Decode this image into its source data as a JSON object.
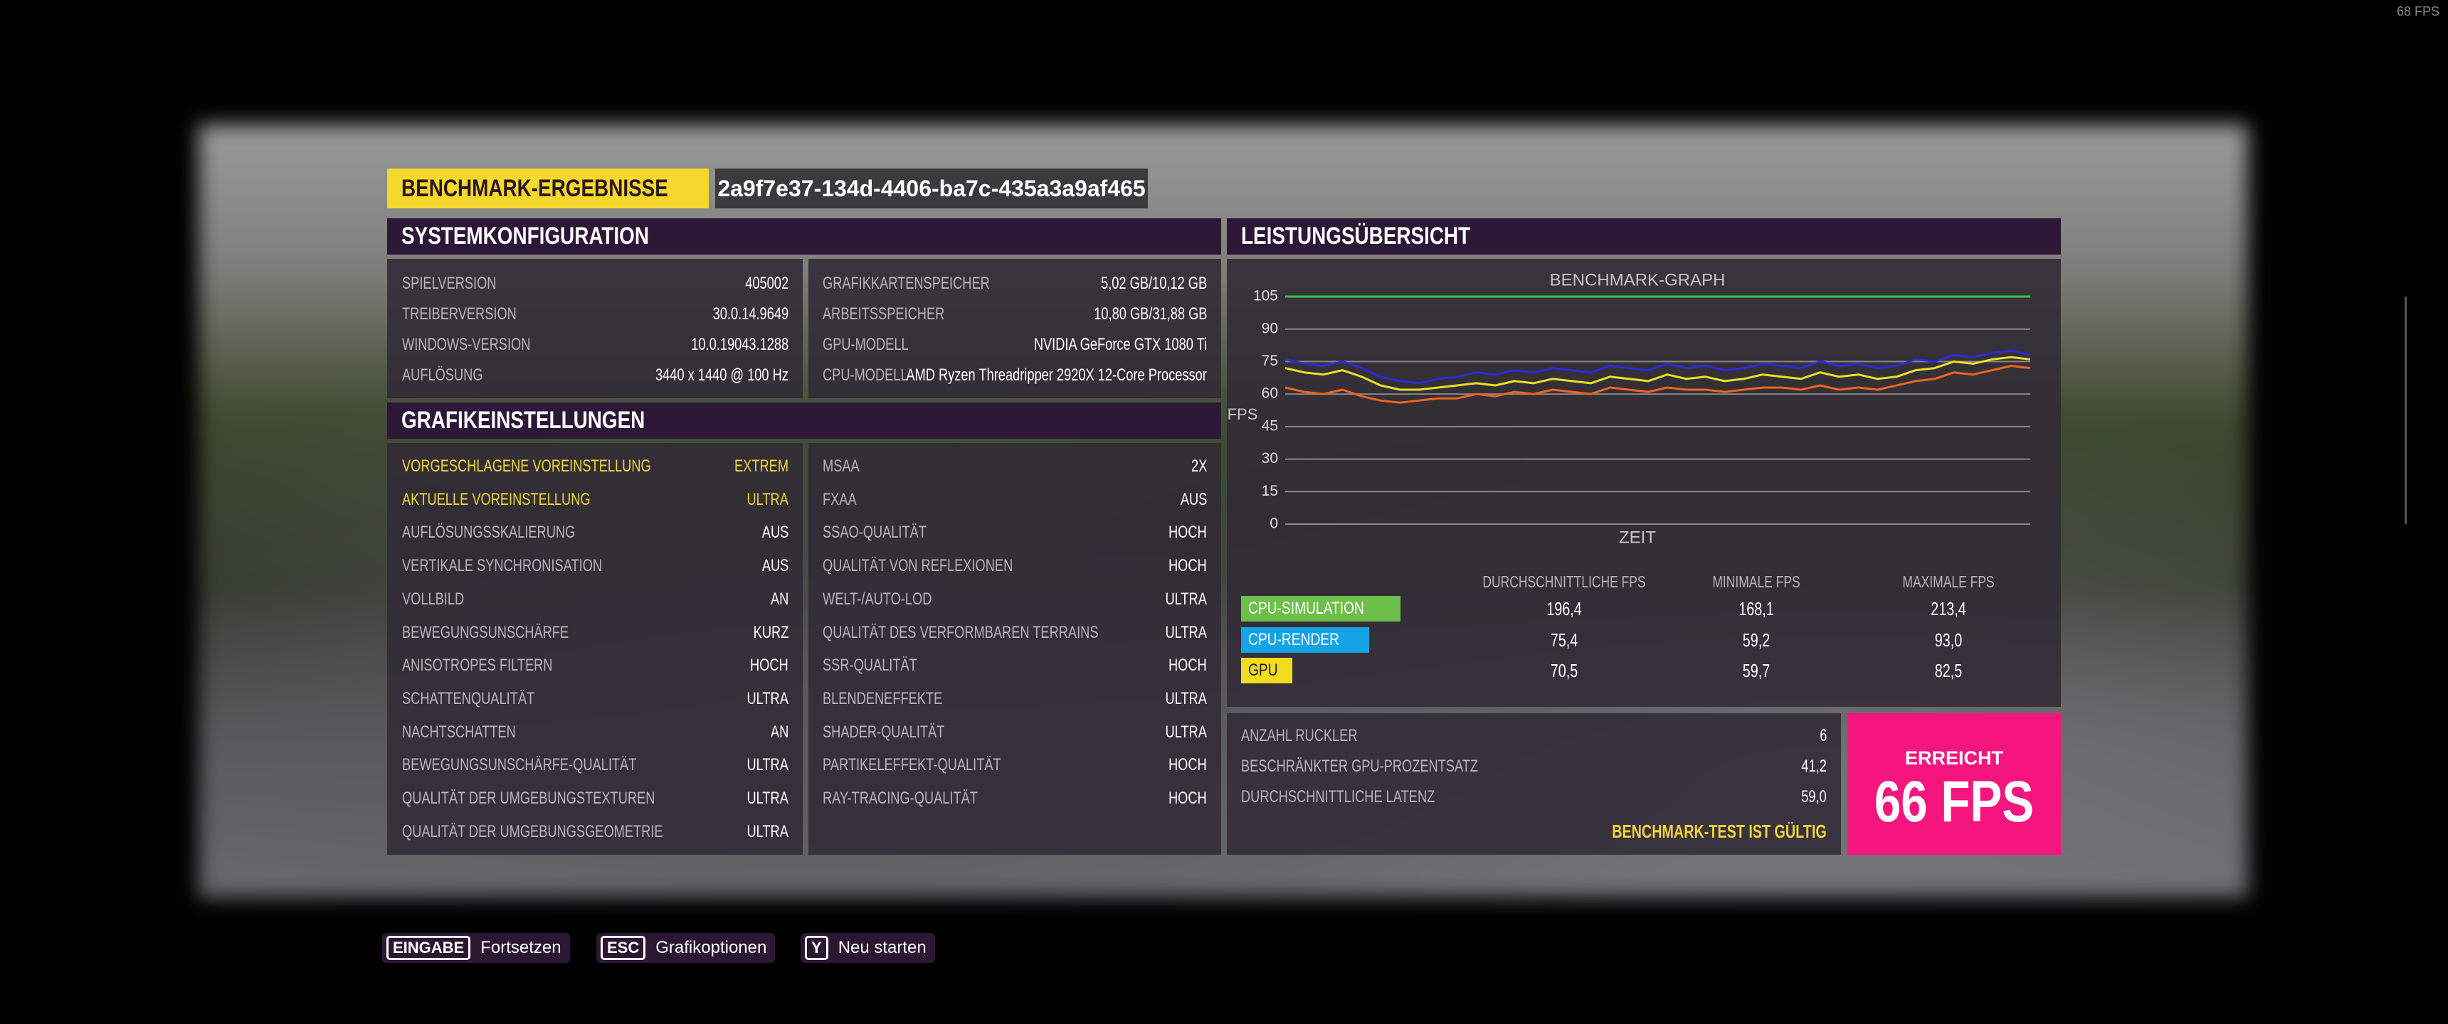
{
  "fps_counter": "68 FPS",
  "header": {
    "title": "BENCHMARK-ERGEBNISSE",
    "id": "2a9f7e37-134d-4406-ba7c-435a3a9af465"
  },
  "system": {
    "title": "SYSTEMKONFIGURATION",
    "left": [
      [
        "SPIELVERSION",
        "405002"
      ],
      [
        "TREIBERVERSION",
        "30.0.14.9649"
      ],
      [
        "WINDOWS-VERSION",
        "10.0.19043.1288"
      ],
      [
        "AUFLÖSUNG",
        "3440 x 1440 @ 100 Hz"
      ]
    ],
    "right": [
      [
        "GRAFIKKARTENSPEICHER",
        "5,02 GB/10,12 GB"
      ],
      [
        "ARBEITSSPEICHER",
        "10,80 GB/31,88 GB"
      ],
      [
        "GPU-MODELL",
        "NVIDIA GeForce GTX 1080 Ti"
      ],
      [
        "CPU-MODELL",
        "AMD Ryzen Threadripper 2920X 12-Core Processor"
      ]
    ]
  },
  "graphics": {
    "title": "GRAFIKEINSTELLUNGEN",
    "left": [
      [
        "VORGESCHLAGENE VOREINSTELLUNG",
        "EXTREM"
      ],
      [
        "AKTUELLE VOREINSTELLUNG",
        "ULTRA"
      ],
      [
        "AUFLÖSUNGSSKALIERUNG",
        "AUS"
      ],
      [
        "VERTIKALE SYNCHRONISATION",
        "AUS"
      ],
      [
        "VOLLBILD",
        "AN"
      ],
      [
        "BEWEGUNGSUNSCHÄRFE",
        "KURZ"
      ],
      [
        "ANISOTROPES FILTERN",
        "HOCH"
      ],
      [
        "SCHATTENQUALITÄT",
        "ULTRA"
      ],
      [
        "NACHTSCHATTEN",
        "AN"
      ],
      [
        "BEWEGUNGSUNSCHÄRFE-QUALITÄT",
        "ULTRA"
      ],
      [
        "QUALITÄT DER UMGEBUNGSTEXTUREN",
        "ULTRA"
      ],
      [
        "QUALITÄT DER UMGEBUNGSGEOMETRIE",
        "ULTRA"
      ]
    ],
    "right": [
      [
        "MSAA",
        "2X"
      ],
      [
        "FXAA",
        "AUS"
      ],
      [
        "SSAO-QUALITÄT",
        "HOCH"
      ],
      [
        "QUALITÄT VON REFLEXIONEN",
        "HOCH"
      ],
      [
        "WELT-/AUTO-LOD",
        "ULTRA"
      ],
      [
        "QUALITÄT DES VERFORMBAREN TERRAINS",
        "ULTRA"
      ],
      [
        "SSR-QUALITÄT",
        "HOCH"
      ],
      [
        "BLENDENEFFEKTE",
        "ULTRA"
      ],
      [
        "SHADER-QUALITÄT",
        "ULTRA"
      ],
      [
        "PARTIKELEFFEKT-QUALITÄT",
        "HOCH"
      ],
      [
        "RAY-TRACING-QUALITÄT",
        "HOCH"
      ]
    ]
  },
  "performance": {
    "title": "LEISTUNGSÜBERSICHT"
  },
  "chart_data": {
    "type": "line",
    "title": "BENCHMARK-GRAPH",
    "y_label": "FPS",
    "x_label": "ZEIT",
    "ylim": [
      0,
      105
    ],
    "yticks": [
      0,
      15,
      30,
      45,
      60,
      75,
      90,
      105
    ],
    "grid": true,
    "series": [
      {
        "color": "#2a2ad8",
        "values": [
          76,
          74,
          73,
          75,
          72,
          68,
          66,
          65,
          67,
          68,
          70,
          69,
          71,
          70,
          72,
          71,
          70,
          73,
          72,
          71,
          74,
          72,
          73,
          71,
          72,
          74,
          73,
          72,
          75,
          73,
          74,
          72,
          73,
          76,
          75,
          78,
          77,
          79,
          80,
          78
        ]
      },
      {
        "color": "#f0641e",
        "values": [
          63,
          61,
          60,
          62,
          59,
          57,
          56,
          57,
          58,
          58,
          60,
          59,
          61,
          60,
          62,
          61,
          60,
          63,
          62,
          61,
          63,
          62,
          62,
          61,
          62,
          63,
          63,
          62,
          64,
          62,
          63,
          62,
          64,
          66,
          67,
          70,
          69,
          71,
          73,
          72
        ]
      },
      {
        "color": "#e8e020",
        "values": [
          72,
          70,
          69,
          71,
          68,
          64,
          62,
          62,
          63,
          64,
          65,
          64,
          66,
          65,
          67,
          66,
          65,
          68,
          67,
          66,
          69,
          67,
          68,
          66,
          67,
          69,
          68,
          67,
          70,
          68,
          69,
          67,
          68,
          71,
          72,
          75,
          74,
          76,
          77,
          76
        ]
      },
      {
        "color": "#2ecc3a",
        "values": [
          105,
          105,
          105,
          105,
          105,
          105,
          105,
          105,
          105,
          105,
          105,
          105,
          105,
          105,
          105,
          105,
          105,
          105,
          105,
          105,
          105,
          105,
          105,
          105,
          105,
          105,
          105,
          105,
          105,
          105,
          105,
          105,
          105,
          105,
          105,
          105,
          105,
          105,
          105,
          105
        ]
      }
    ]
  },
  "summary": {
    "columns": [
      "DURCHSCHNITTLICHE FPS",
      "MINIMALE FPS",
      "MAXIMALE FPS"
    ],
    "rows": [
      {
        "label": "CPU-SIMULATION",
        "color": "#6cc04a",
        "values": [
          "196,4",
          "168,1",
          "213,4"
        ]
      },
      {
        "label": "CPU-RENDER",
        "color": "#14a4e6",
        "values": [
          "75,4",
          "59,2",
          "93,0"
        ]
      },
      {
        "label": "GPU",
        "color": "#f3dc1e",
        "values": [
          "70,5",
          "59,7",
          "82,5"
        ]
      }
    ]
  },
  "stats": {
    "rows": [
      [
        "ANZAHL RUCKLER",
        "6"
      ],
      [
        "BESCHRÄNKTER GPU-PROZENTSATZ",
        "41,2"
      ],
      [
        "DURCHSCHNITTLICHE LATENZ",
        "59,0"
      ]
    ],
    "status": "BENCHMARK-TEST IST GÜLTIG"
  },
  "result": {
    "label": "ERREICHT",
    "value": "66 FPS"
  },
  "footer": [
    {
      "key": "EINGABE",
      "label": "Fortsetzen"
    },
    {
      "key": "ESC",
      "label": "Grafikoptionen"
    },
    {
      "key": "Y",
      "label": "Neu starten"
    }
  ]
}
